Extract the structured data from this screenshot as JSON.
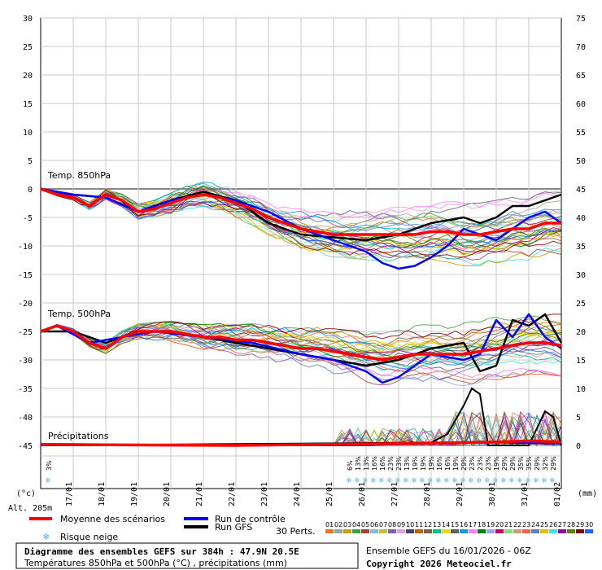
{
  "chart_data": {
    "type": "line",
    "left_axis": {
      "min": -45,
      "max": 30,
      "ticks": [
        30,
        25,
        20,
        15,
        10,
        5,
        0,
        -5,
        -10,
        -15,
        -20,
        -25,
        -30,
        -35,
        -40,
        -45
      ],
      "unit": "(°c)"
    },
    "right_axis": {
      "min": 0,
      "max": 75,
      "ticks": [
        75,
        70,
        65,
        60,
        55,
        50,
        45,
        40,
        35,
        30,
        25,
        20,
        15,
        10,
        5,
        0
      ],
      "unit": "(mm)"
    },
    "x_hours": {
      "min": 0,
      "max": 384
    },
    "dates": [
      "17/01",
      "18/01",
      "19/01",
      "20/01",
      "21/01",
      "22/01",
      "23/01",
      "24/01",
      "25/01",
      "26/01",
      "27/01",
      "28/01",
      "29/01",
      "30/01",
      "31/01",
      "01/02"
    ],
    "altitude": "Alt. 205m",
    "sections": {
      "t850": "Temp. 850hPa",
      "t500": "Temp. 500hPa",
      "precip": "Précipitations"
    },
    "series": [
      {
        "name": "Moyenne des scénarios",
        "color": "#ff0000",
        "t850": [
          [
            0,
            0
          ],
          [
            12,
            -1
          ],
          [
            24,
            -1.5
          ],
          [
            36,
            -3
          ],
          [
            48,
            -1
          ],
          [
            60,
            -2
          ],
          [
            72,
            -4
          ],
          [
            84,
            -3.5
          ],
          [
            96,
            -2.5
          ],
          [
            108,
            -1.5
          ],
          [
            120,
            -1
          ],
          [
            132,
            -1.5
          ],
          [
            144,
            -2.5
          ],
          [
            156,
            -3.5
          ],
          [
            168,
            -5
          ],
          [
            180,
            -6
          ],
          [
            192,
            -7
          ],
          [
            204,
            -7.5
          ],
          [
            216,
            -8
          ],
          [
            228,
            -8
          ],
          [
            240,
            -8
          ],
          [
            252,
            -8
          ],
          [
            264,
            -8
          ],
          [
            276,
            -8
          ],
          [
            288,
            -7.5
          ],
          [
            300,
            -7.5
          ],
          [
            312,
            -8
          ],
          [
            324,
            -8
          ],
          [
            336,
            -7.5
          ],
          [
            348,
            -7
          ],
          [
            360,
            -7
          ],
          [
            372,
            -6
          ],
          [
            384,
            -6
          ]
        ],
        "t500": [
          [
            0,
            -25
          ],
          [
            12,
            -24
          ],
          [
            24,
            -25
          ],
          [
            36,
            -27
          ],
          [
            48,
            -28
          ],
          [
            60,
            -26
          ],
          [
            72,
            -25
          ],
          [
            84,
            -25
          ],
          [
            96,
            -25
          ],
          [
            108,
            -25.5
          ],
          [
            120,
            -26
          ],
          [
            132,
            -26
          ],
          [
            144,
            -26.5
          ],
          [
            156,
            -26.5
          ],
          [
            168,
            -27
          ],
          [
            180,
            -27.5
          ],
          [
            192,
            -28
          ],
          [
            204,
            -28
          ],
          [
            216,
            -28.5
          ],
          [
            228,
            -29
          ],
          [
            240,
            -29.5
          ],
          [
            252,
            -30
          ],
          [
            264,
            -29.5
          ],
          [
            276,
            -29
          ],
          [
            288,
            -29
          ],
          [
            300,
            -29
          ],
          [
            312,
            -29
          ],
          [
            324,
            -28.5
          ],
          [
            336,
            -28
          ],
          [
            348,
            -27.5
          ],
          [
            360,
            -27
          ],
          [
            372,
            -27
          ],
          [
            384,
            -27.5
          ]
        ],
        "precip": [
          [
            0,
            0.2
          ],
          [
            48,
            0.1
          ],
          [
            144,
            0
          ],
          [
            216,
            0.2
          ],
          [
            264,
            0.3
          ],
          [
            312,
            0.5
          ],
          [
            336,
            0.6
          ],
          [
            360,
            0.8
          ],
          [
            384,
            0.6
          ]
        ]
      },
      {
        "name": "Run de contrôle",
        "color": "#0000ff",
        "t850": [
          [
            0,
            0
          ],
          [
            24,
            -1
          ],
          [
            48,
            -1.5
          ],
          [
            72,
            -4
          ],
          [
            96,
            -2
          ],
          [
            120,
            -1
          ],
          [
            144,
            -2
          ],
          [
            168,
            -4
          ],
          [
            192,
            -7
          ],
          [
            216,
            -9
          ],
          [
            240,
            -11
          ],
          [
            252,
            -13
          ],
          [
            264,
            -14
          ],
          [
            276,
            -13.5
          ],
          [
            288,
            -12
          ],
          [
            300,
            -10
          ],
          [
            312,
            -7
          ],
          [
            324,
            -8
          ],
          [
            336,
            -9
          ],
          [
            348,
            -7
          ],
          [
            360,
            -5
          ],
          [
            372,
            -4
          ],
          [
            384,
            -6
          ]
        ],
        "t500": [
          [
            0,
            -25
          ],
          [
            12,
            -24
          ],
          [
            36,
            -27
          ],
          [
            60,
            -26
          ],
          [
            84,
            -25
          ],
          [
            120,
            -26
          ],
          [
            156,
            -27
          ],
          [
            192,
            -29
          ],
          [
            216,
            -30
          ],
          [
            240,
            -32
          ],
          [
            252,
            -34
          ],
          [
            264,
            -33
          ],
          [
            288,
            -29
          ],
          [
            312,
            -30
          ],
          [
            324,
            -29
          ],
          [
            336,
            -23
          ],
          [
            348,
            -26
          ],
          [
            360,
            -22
          ],
          [
            372,
            -26
          ],
          [
            384,
            -28
          ]
        ],
        "precip": [
          [
            0,
            0
          ],
          [
            240,
            0
          ],
          [
            288,
            0.4
          ],
          [
            336,
            0.5
          ],
          [
            384,
            0.3
          ]
        ]
      },
      {
        "name": "Run GFS",
        "color": "#000000",
        "t850": [
          [
            0,
            0
          ],
          [
            24,
            -1
          ],
          [
            48,
            -1.5
          ],
          [
            72,
            -4
          ],
          [
            96,
            -2
          ],
          [
            120,
            -0.5
          ],
          [
            144,
            -2
          ],
          [
            168,
            -6
          ],
          [
            192,
            -8
          ],
          [
            216,
            -8.5
          ],
          [
            240,
            -9
          ],
          [
            264,
            -8
          ],
          [
            288,
            -6
          ],
          [
            312,
            -5
          ],
          [
            324,
            -6
          ],
          [
            336,
            -5
          ],
          [
            348,
            -3
          ],
          [
            360,
            -3
          ],
          [
            372,
            -2
          ],
          [
            384,
            -1
          ]
        ],
        "t500": [
          [
            0,
            -25
          ],
          [
            24,
            -25
          ],
          [
            48,
            -27
          ],
          [
            72,
            -25
          ],
          [
            96,
            -25
          ],
          [
            120,
            -26
          ],
          [
            144,
            -27
          ],
          [
            168,
            -28
          ],
          [
            192,
            -29
          ],
          [
            216,
            -30
          ],
          [
            240,
            -31
          ],
          [
            264,
            -30
          ],
          [
            288,
            -28
          ],
          [
            312,
            -27
          ],
          [
            324,
            -32
          ],
          [
            336,
            -31
          ],
          [
            348,
            -23
          ],
          [
            360,
            -24
          ],
          [
            372,
            -22
          ],
          [
            384,
            -27
          ]
        ],
        "precip": [
          [
            0,
            0
          ],
          [
            288,
            0.5
          ],
          [
            300,
            2
          ],
          [
            312,
            7
          ],
          [
            318,
            10
          ],
          [
            324,
            9
          ],
          [
            330,
            0
          ],
          [
            360,
            0
          ],
          [
            372,
            6
          ],
          [
            378,
            5
          ],
          [
            384,
            0
          ]
        ]
      }
    ],
    "legend": {
      "mean": "Moyenne des scénarios",
      "control": "Run de contrôle",
      "gfs": "Run GFS",
      "snow": "Risque neige"
    },
    "perts_label": "30 Perts.",
    "pert_numbers": [
      "01",
      "02",
      "03",
      "04",
      "05",
      "06",
      "07",
      "08",
      "09",
      "10",
      "11",
      "12",
      "13",
      "14",
      "15",
      "16",
      "17",
      "18",
      "19",
      "20",
      "21",
      "22",
      "23",
      "24",
      "25",
      "26",
      "27",
      "28",
      "29",
      "30"
    ],
    "pert_colors": [
      "#e07820",
      "#a0a0a0",
      "#c8a000",
      "#40a040",
      "#a04040",
      "#80c0c0",
      "#c0c040",
      "#8060a0",
      "#e0a0e0",
      "#404080",
      "#c06000",
      "#806040",
      "#00c080",
      "#e0e000",
      "#606060",
      "#00a0e0",
      "#ff80ff",
      "#008000",
      "#a0a0ff",
      "#c00060",
      "#80e080",
      "#c0a080",
      "#ff6040",
      "#6080c0",
      "#e0c000",
      "#40e0e0",
      "#a000a0",
      "#608000",
      "#800000",
      "#2060ff"
    ],
    "snow_risk": [
      {
        "h": 6,
        "pct": "3%"
      },
      {
        "h": 228,
        "pct": "6%"
      },
      {
        "h": 234,
        "pct": "13%"
      },
      {
        "h": 240,
        "pct": "13%"
      },
      {
        "h": 246,
        "pct": "16%"
      },
      {
        "h": 252,
        "pct": "16%"
      },
      {
        "h": 258,
        "pct": "23%"
      },
      {
        "h": 264,
        "pct": "23%"
      },
      {
        "h": 270,
        "pct": "13%"
      },
      {
        "h": 276,
        "pct": "19%"
      },
      {
        "h": 282,
        "pct": "19%"
      },
      {
        "h": 288,
        "pct": "19%"
      },
      {
        "h": 294,
        "pct": "16%"
      },
      {
        "h": 300,
        "pct": "16%"
      },
      {
        "h": 306,
        "pct": "19%"
      },
      {
        "h": 312,
        "pct": "29%"
      },
      {
        "h": 318,
        "pct": "23%"
      },
      {
        "h": 324,
        "pct": "23%"
      },
      {
        "h": 330,
        "pct": "23%"
      },
      {
        "h": 336,
        "pct": "19%"
      },
      {
        "h": 342,
        "pct": "29%"
      },
      {
        "h": 348,
        "pct": "29%"
      },
      {
        "h": 354,
        "pct": "35%"
      },
      {
        "h": 360,
        "pct": "35%"
      },
      {
        "h": 366,
        "pct": "29%"
      },
      {
        "h": 372,
        "pct": "32%"
      },
      {
        "h": 378,
        "pct": "29%"
      }
    ],
    "footer": {
      "title": "Diagramme des ensembles GEFS sur 384h : 47.9N 20.5E",
      "subtitle": "Températures 850hPa et 500hPa (°C) , précipitations (mm)",
      "run": "Ensemble GEFS du 16/01/2026 - 06Z",
      "copyright": "Copyright 2026 Meteociel.fr"
    }
  }
}
